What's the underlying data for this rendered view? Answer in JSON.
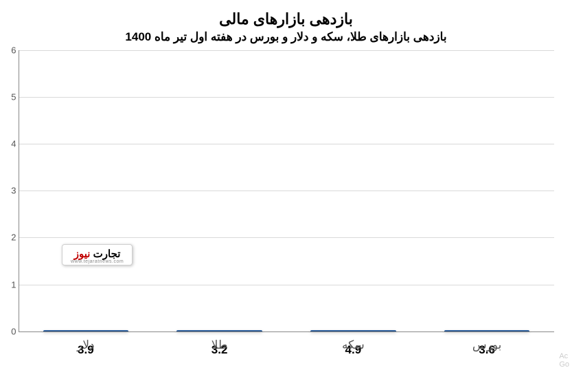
{
  "chart": {
    "type": "bar",
    "title": "بازدهی بازارهای مالی",
    "title_fontsize": 22,
    "subtitle": "بازدهی بازارهای طلا، سکه و دلار و بورس در هفته اول تیر ماه 1400",
    "subtitle_fontsize": 17,
    "categories": [
      "دلار",
      "طلا",
      "سکه",
      "بورس"
    ],
    "values": [
      3.9,
      3.2,
      4.9,
      3.6
    ],
    "value_labels": [
      "3.9",
      "3.2",
      "4.9",
      "3.6"
    ],
    "bar_gradient_top": "#6aa2de",
    "bar_gradient_bottom": "#3d75b8",
    "bar_border": "#2f5f9b",
    "ylim_min": 0,
    "ylim_max": 6,
    "ytick_step": 1,
    "yticks": [
      "0",
      "1",
      "2",
      "3",
      "4",
      "5",
      "6"
    ],
    "grid_color": "#d9d9d9",
    "background_color": "#ffffff",
    "axis_color": "#888888",
    "datalabel_fontsize": 17,
    "xlabel_fontsize": 17,
    "ytick_fontsize": 13
  },
  "watermark": {
    "text_black": "تجارت",
    "text_red": " نیوز",
    "sub": "www.tejaratnews.com"
  },
  "corner": {
    "l1": "Ac",
    "l2": "Go"
  }
}
